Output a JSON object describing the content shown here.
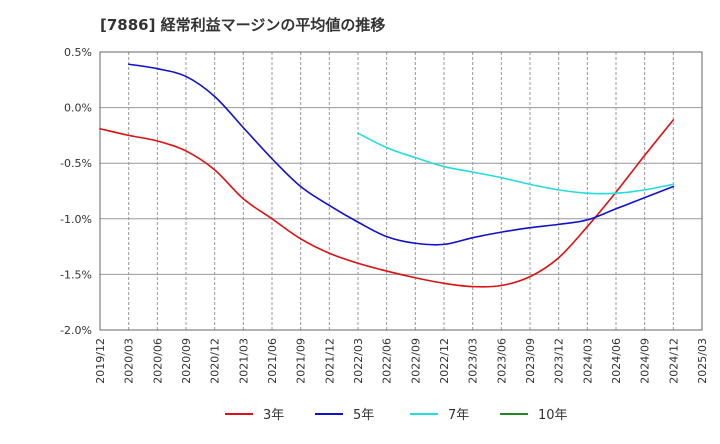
{
  "chart_data": {
    "type": "line",
    "title": "[7886]  経常利益マージンの平均値の推移",
    "xlabel": "",
    "ylabel": "",
    "x": [
      "2019/12",
      "2020/03",
      "2020/06",
      "2020/09",
      "2020/12",
      "2021/03",
      "2021/06",
      "2021/09",
      "2021/12",
      "2022/03",
      "2022/06",
      "2022/09",
      "2022/12",
      "2023/03",
      "2023/06",
      "2023/09",
      "2023/12",
      "2024/03",
      "2024/06",
      "2024/09",
      "2024/12",
      "2025/03"
    ],
    "ylim": [
      -2.0,
      0.5
    ],
    "yticks": [
      0.5,
      0.0,
      -0.5,
      -1.0,
      -1.5,
      -2.0
    ],
    "ytick_labels": [
      "0.5%",
      "0.0%",
      "-0.5%",
      "-1.0%",
      "-1.5%",
      "-2.0%"
    ],
    "grid": true,
    "legend_position": "bottom",
    "series": [
      {
        "name": "3年",
        "color": "#dd1111",
        "values": [
          -0.19,
          -0.25,
          -0.3,
          -0.39,
          -0.56,
          -0.82,
          -1.0,
          -1.18,
          -1.31,
          -1.4,
          -1.47,
          -1.53,
          -1.58,
          -1.61,
          -1.6,
          -1.52,
          -1.35,
          -1.07,
          -0.76,
          -0.43,
          -0.11,
          null
        ]
      },
      {
        "name": "5年",
        "color": "#1111cc",
        "values": [
          null,
          0.39,
          0.35,
          0.28,
          0.1,
          -0.18,
          -0.46,
          -0.71,
          -0.88,
          -1.03,
          -1.16,
          -1.22,
          -1.23,
          -1.17,
          -1.12,
          -1.08,
          -1.05,
          -1.01,
          -0.91,
          -0.81,
          -0.71,
          null
        ]
      },
      {
        "name": "7年",
        "color": "#22dddd",
        "values": [
          null,
          null,
          null,
          null,
          null,
          null,
          null,
          null,
          null,
          -0.23,
          -0.36,
          -0.45,
          -0.53,
          -0.58,
          -0.63,
          -0.69,
          -0.74,
          -0.77,
          -0.77,
          -0.74,
          -0.69,
          null
        ]
      },
      {
        "name": "10年",
        "color": "#228822",
        "values": [
          null,
          null,
          null,
          null,
          null,
          null,
          null,
          null,
          null,
          null,
          null,
          null,
          null,
          null,
          null,
          null,
          null,
          null,
          null,
          null,
          null,
          null
        ]
      }
    ]
  }
}
